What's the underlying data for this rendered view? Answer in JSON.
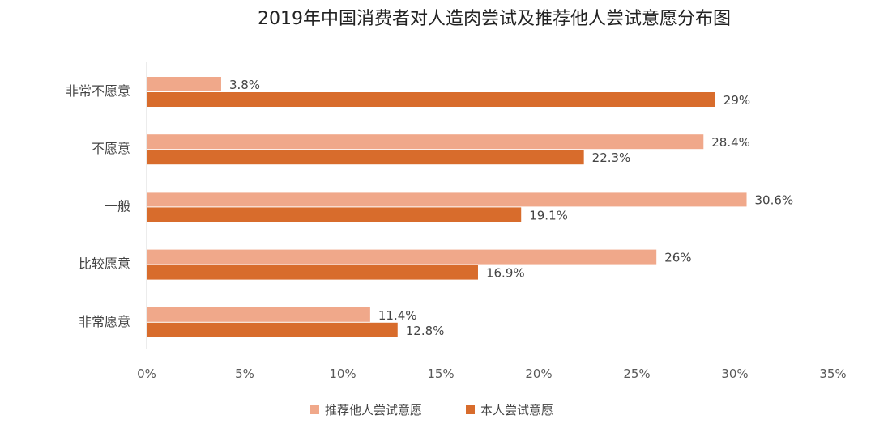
{
  "chart_data": {
    "type": "bar",
    "orientation": "horizontal",
    "title": "2019年中国消费者对人造肉尝试及推荐他人尝试意愿分布图",
    "categories": [
      "非常不愿意",
      "不愿意",
      "一般",
      "比较愿意",
      "非常愿意"
    ],
    "series": [
      {
        "name": "推荐他人尝试意愿",
        "color": "#f0a88a",
        "values": [
          3.8,
          28.4,
          30.6,
          26,
          11.4
        ],
        "labels": [
          "3.8%",
          "28.4%",
          "30.6%",
          "26%",
          "11.4%"
        ]
      },
      {
        "name": "本人尝试意愿",
        "color": "#d86c2c",
        "values": [
          29,
          22.3,
          19.1,
          16.9,
          12.8
        ],
        "labels": [
          "29%",
          "22.3%",
          "19.1%",
          "16.9%",
          "12.8%"
        ]
      }
    ],
    "xlim": [
      0,
      35
    ],
    "xticks": [
      "0%",
      "5%",
      "10%",
      "15%",
      "20%",
      "25%",
      "30%",
      "35%"
    ],
    "grid": false,
    "legend_position": "bottom"
  }
}
